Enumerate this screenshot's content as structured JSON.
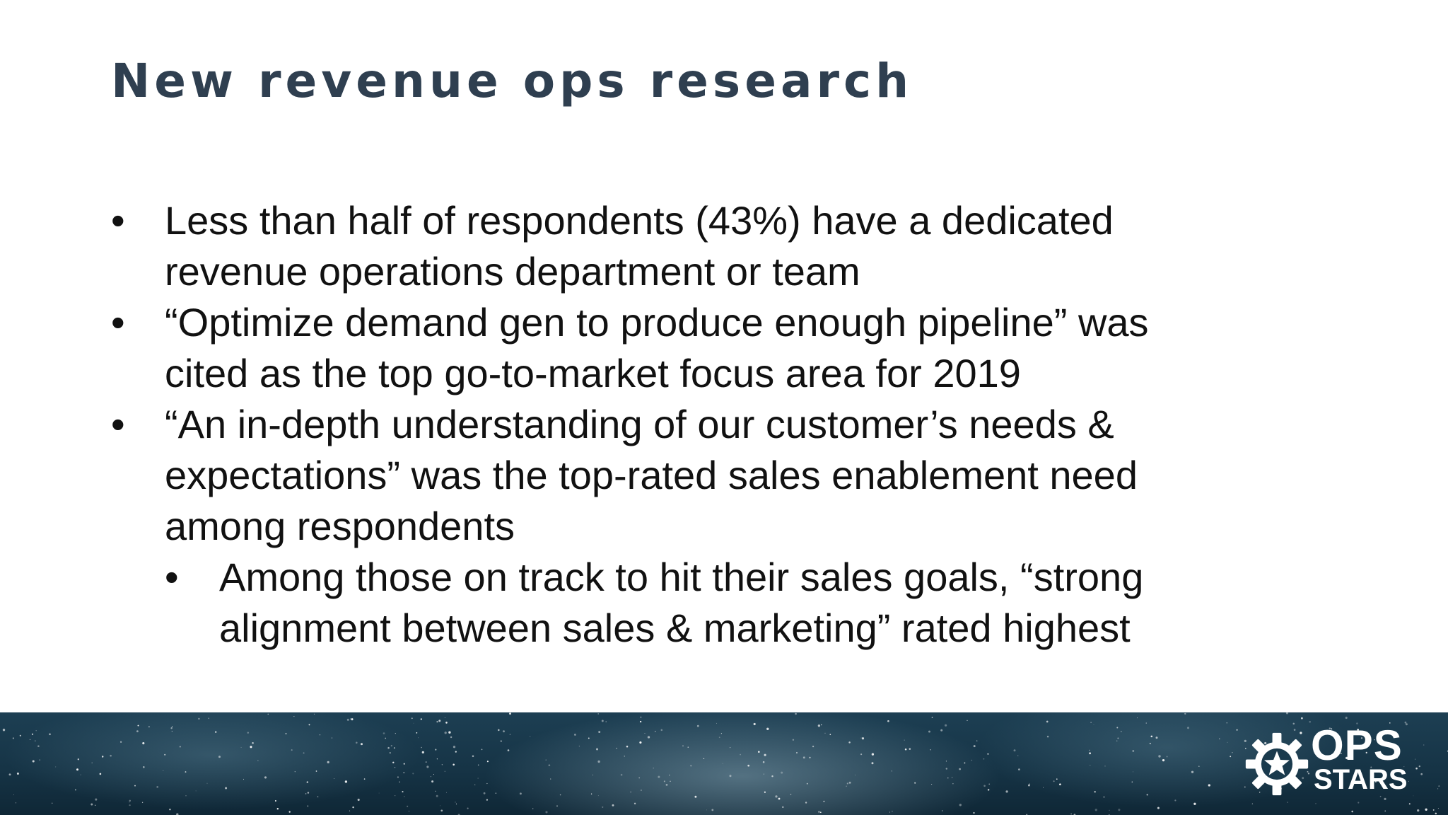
{
  "slide": {
    "title": "New revenue ops research",
    "bullets": [
      {
        "level": 1,
        "lines": [
          "Less than half of respondents (43%) have a dedicated",
          "revenue operations department or team"
        ]
      },
      {
        "level": 1,
        "lines": [
          "“Optimize demand gen to produce enough pipeline” was",
          "cited as the top go-to-market focus area for 2019"
        ]
      },
      {
        "level": 1,
        "lines": [
          "“An in-depth understanding of our customer’s needs &",
          "expectations” was the top-rated sales enablement need",
          "among respondents"
        ]
      },
      {
        "level": 2,
        "lines": [
          "Among those on track to hit their sales goals, “strong",
          "alignment between sales & marketing” rated highest"
        ]
      }
    ],
    "bullet_symbol": "•"
  },
  "footer": {
    "logo": {
      "line1": "OPS",
      "line2": "STARS",
      "icon": "gear-star-icon"
    }
  },
  "colors": {
    "title": "#2f3f50",
    "body_text": "#111111",
    "footer_bg": "#163446",
    "logo": "#ffffff"
  }
}
